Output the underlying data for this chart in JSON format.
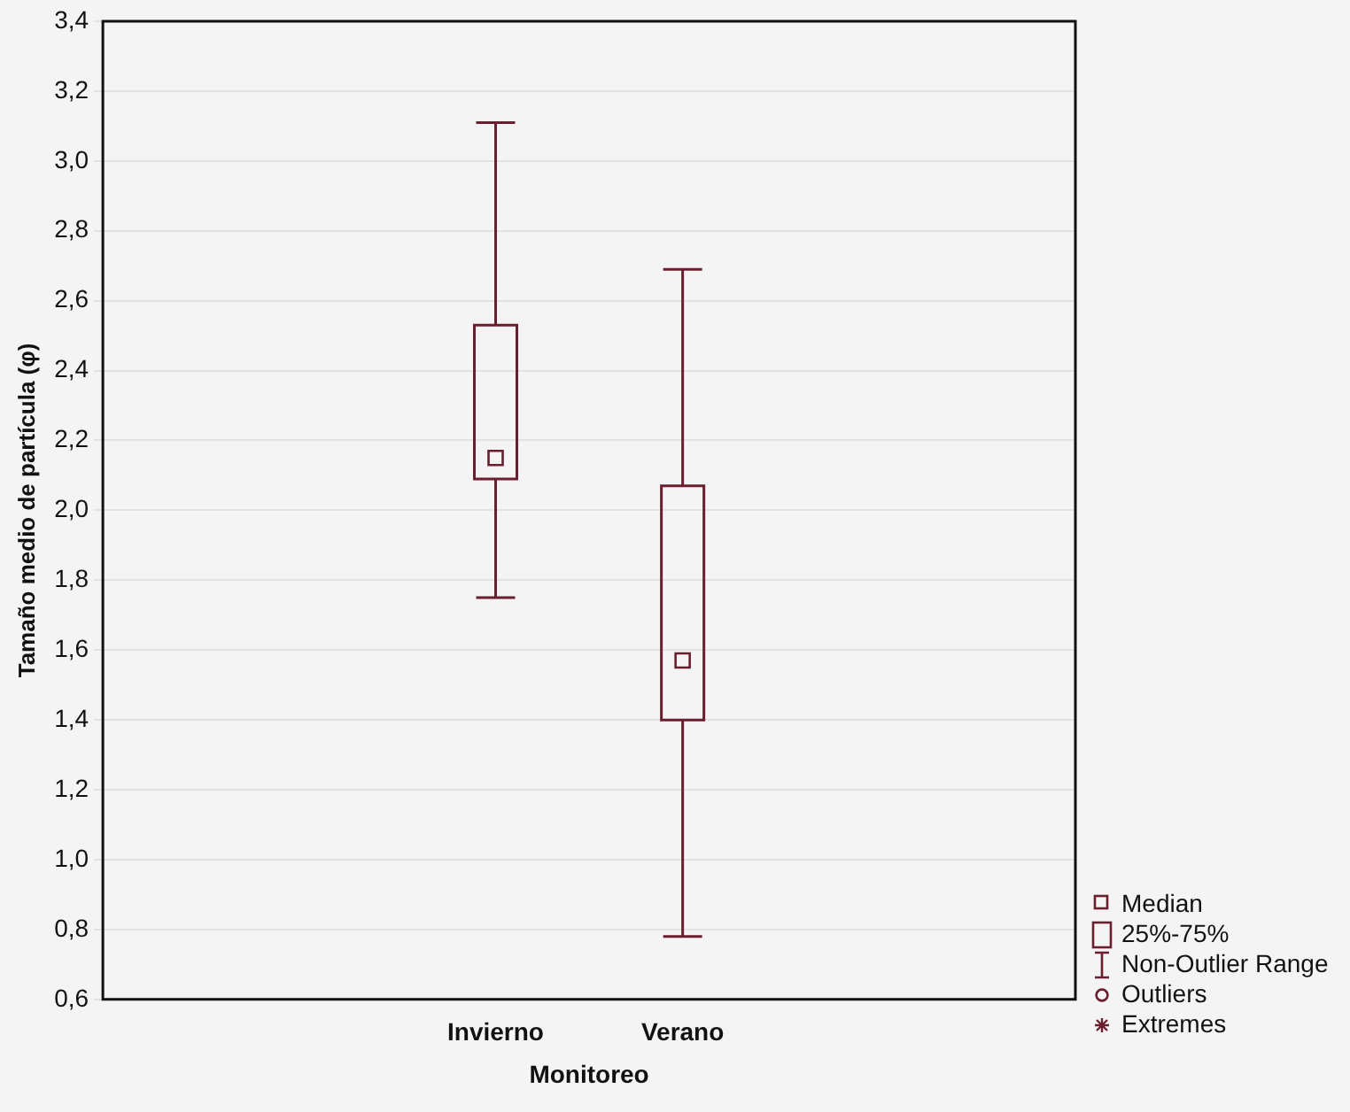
{
  "chart_data": {
    "type": "box",
    "xlabel": "Monitoreo",
    "ylabel": "Tamaño medio de partícula (φ)",
    "categories": [
      "Invierno",
      "Verano"
    ],
    "series": [
      {
        "color": "#6b1f2e",
        "boxes": [
          {
            "low": 1.75,
            "q1": 2.09,
            "median": 2.15,
            "q3": 2.53,
            "high": 3.11
          },
          {
            "low": 0.78,
            "q1": 1.4,
            "median": 1.57,
            "q3": 2.07,
            "high": 2.69
          }
        ]
      }
    ],
    "ylim": [
      0.6,
      3.4
    ],
    "yticks": [
      {
        "value": 0.6,
        "label": "0,6"
      },
      {
        "value": 0.8,
        "label": "0,8"
      },
      {
        "value": 1.0,
        "label": "1,0"
      },
      {
        "value": 1.2,
        "label": "1,2"
      },
      {
        "value": 1.4,
        "label": "1,4"
      },
      {
        "value": 1.6,
        "label": "1,6"
      },
      {
        "value": 1.8,
        "label": "1,8"
      },
      {
        "value": 2.0,
        "label": "2,0"
      },
      {
        "value": 2.2,
        "label": "2,2"
      },
      {
        "value": 2.4,
        "label": "2,4"
      },
      {
        "value": 2.6,
        "label": "2,6"
      },
      {
        "value": 2.8,
        "label": "2,8"
      },
      {
        "value": 3.0,
        "label": "3,0"
      },
      {
        "value": 3.2,
        "label": "3,2"
      },
      {
        "value": 3.4,
        "label": "3,4"
      }
    ],
    "grid": "y",
    "annotations": [
      "Median",
      "25%-75%",
      "Non-Outlier Range",
      "Outliers",
      "Extremes"
    ]
  }
}
